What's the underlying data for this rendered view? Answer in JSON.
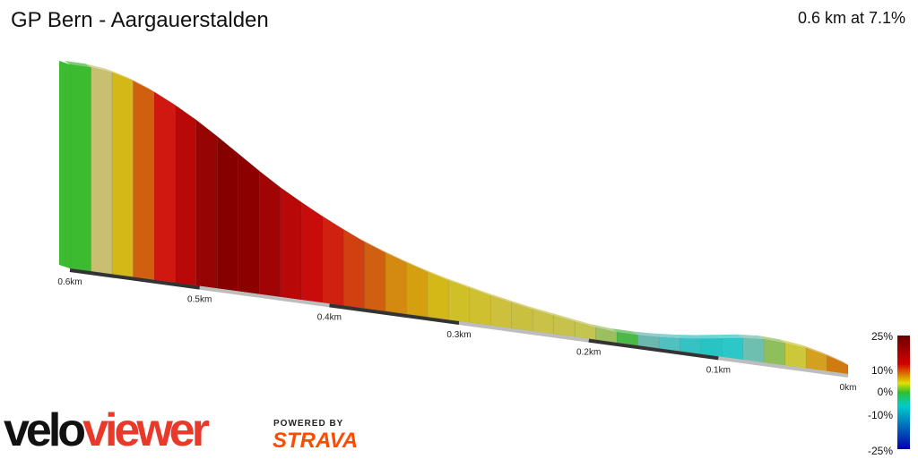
{
  "header": {
    "title": "GP Bern - Aargauerstalden",
    "summary": "0.6 km at 7.1%"
  },
  "branding": {
    "logo_text": "veloviewer",
    "powered_label": "POWERED BY",
    "strava_label": "STRAVA"
  },
  "chart_data": {
    "type": "area",
    "description_note": "3D gradient-coloured elevation profile, distance runs right-to-left",
    "x_ticks": [
      "0km",
      "0.1km",
      "0.2km",
      "0.3km",
      "0.4km",
      "0.5km",
      "0.6km"
    ],
    "legend": {
      "labels": [
        "25%",
        "10%",
        "0%",
        "-10%",
        "-25%"
      ],
      "colors": [
        "#6b0000",
        "#d40000",
        "#e0e000",
        "#2fbf2f",
        "#00cccc",
        "#0000aa"
      ]
    },
    "segments": [
      {
        "gradient": 8,
        "color": "#d07a10"
      },
      {
        "gradient": 6,
        "color": "#d4a020"
      },
      {
        "gradient": 3,
        "color": "#cdc83a"
      },
      {
        "gradient": 1,
        "color": "#8fbf5a"
      },
      {
        "gradient": -2,
        "color": "#6fbfb0"
      },
      {
        "gradient": -4,
        "color": "#2cc8c8"
      },
      {
        "gradient": -4,
        "color": "#28c4c4"
      },
      {
        "gradient": -3,
        "color": "#34c2c2"
      },
      {
        "gradient": -2,
        "color": "#50c0c0"
      },
      {
        "gradient": -1,
        "color": "#6ab8b0"
      },
      {
        "gradient": 0,
        "color": "#4cb848"
      },
      {
        "gradient": 2,
        "color": "#9cc060"
      },
      {
        "gradient": 4,
        "color": "#c4c450"
      },
      {
        "gradient": 4,
        "color": "#c6c24c"
      },
      {
        "gradient": 4,
        "color": "#c8c248"
      },
      {
        "gradient": 5,
        "color": "#cac040"
      },
      {
        "gradient": 5,
        "color": "#ccc03c"
      },
      {
        "gradient": 6,
        "color": "#cfc030"
      },
      {
        "gradient": 6,
        "color": "#d0c028"
      },
      {
        "gradient": 7,
        "color": "#d4b818"
      },
      {
        "gradient": 8,
        "color": "#d4a010"
      },
      {
        "gradient": 9,
        "color": "#d48a10"
      },
      {
        "gradient": 10,
        "color": "#d06010"
      },
      {
        "gradient": 12,
        "color": "#d04010"
      },
      {
        "gradient": 13,
        "color": "#d02010"
      },
      {
        "gradient": 14,
        "color": "#c80c0c"
      },
      {
        "gradient": 15,
        "color": "#b80808"
      },
      {
        "gradient": 17,
        "color": "#a00404"
      },
      {
        "gradient": 18,
        "color": "#8c0000"
      },
      {
        "gradient": 18,
        "color": "#860000"
      },
      {
        "gradient": 17,
        "color": "#960404"
      },
      {
        "gradient": 15,
        "color": "#b80808"
      },
      {
        "gradient": 13,
        "color": "#d01810"
      },
      {
        "gradient": 10,
        "color": "#d06010"
      },
      {
        "gradient": 7,
        "color": "#d4b818"
      },
      {
        "gradient": 3,
        "color": "#c8c070"
      },
      {
        "gradient": 0,
        "color": "#3cba30"
      }
    ]
  }
}
